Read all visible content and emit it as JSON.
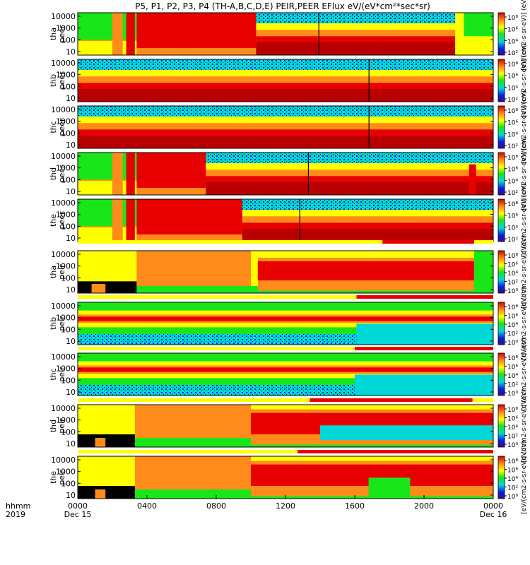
{
  "chart_data": {
    "type": "heatmap",
    "title": "P5, P1, P2, P3, P4 (TH-A,B,C,D,E) PEIR,PEER EFlux eV/(eV*cm²*sec*sr)",
    "xlabel_left": [
      "hhmm",
      "2019"
    ],
    "x_ticks": [
      "0000",
      "0400",
      "0800",
      "1200",
      "1600",
      "2000",
      "0000"
    ],
    "x_day_labels": [
      "Dec 15",
      "Dec 16"
    ],
    "y_ticks": [
      "10000",
      "1000",
      "100",
      "10"
    ],
    "y_scale": "log",
    "ylim": [
      5,
      20000
    ],
    "colorbar_label": "[eV/(cm2-s-sr-eV)] (eV)",
    "colorbar_ticks_peer": [
      "10⁸",
      "10⁶",
      "10⁴",
      "10²"
    ],
    "colorbar_ticks_peir": [
      "10⁸",
      "10⁶",
      "10⁴",
      "10²",
      "10⁰"
    ],
    "panels": [
      {
        "probe": "tha",
        "species": "peer",
        "ylabel": [
          "tha",
          "peer"
        ]
      },
      {
        "probe": "thb",
        "species": "peer",
        "ylabel": [
          "thb",
          "peer"
        ]
      },
      {
        "probe": "thc",
        "species": "peer",
        "ylabel": [
          "thc",
          "peer"
        ]
      },
      {
        "probe": "thd",
        "species": "peer",
        "ylabel": [
          "thd",
          "peer"
        ]
      },
      {
        "probe": "the",
        "species": "peer",
        "ylabel": [
          "the",
          "peer"
        ]
      },
      {
        "probe": "tha",
        "species": "peir",
        "ylabel": [
          "tha",
          "peir"
        ]
      },
      {
        "probe": "thb",
        "species": "peir",
        "ylabel": [
          "thb",
          "peir"
        ]
      },
      {
        "probe": "thc",
        "species": "peir",
        "ylabel": [
          "thc",
          "peir"
        ]
      },
      {
        "probe": "thd",
        "species": "peir",
        "ylabel": [
          "thd",
          "peir"
        ]
      },
      {
        "probe": "the",
        "species": "peir",
        "ylabel": [
          "the",
          "peir"
        ]
      }
    ],
    "colors": {
      "red": "#e80000",
      "darkred": "#b80000",
      "orange": "#ff8c1a",
      "yellow": "#ffff00",
      "green": "#19e619",
      "cyan": "#00d8d8",
      "blue": "#0a1ee6",
      "black": "#000000"
    }
  }
}
